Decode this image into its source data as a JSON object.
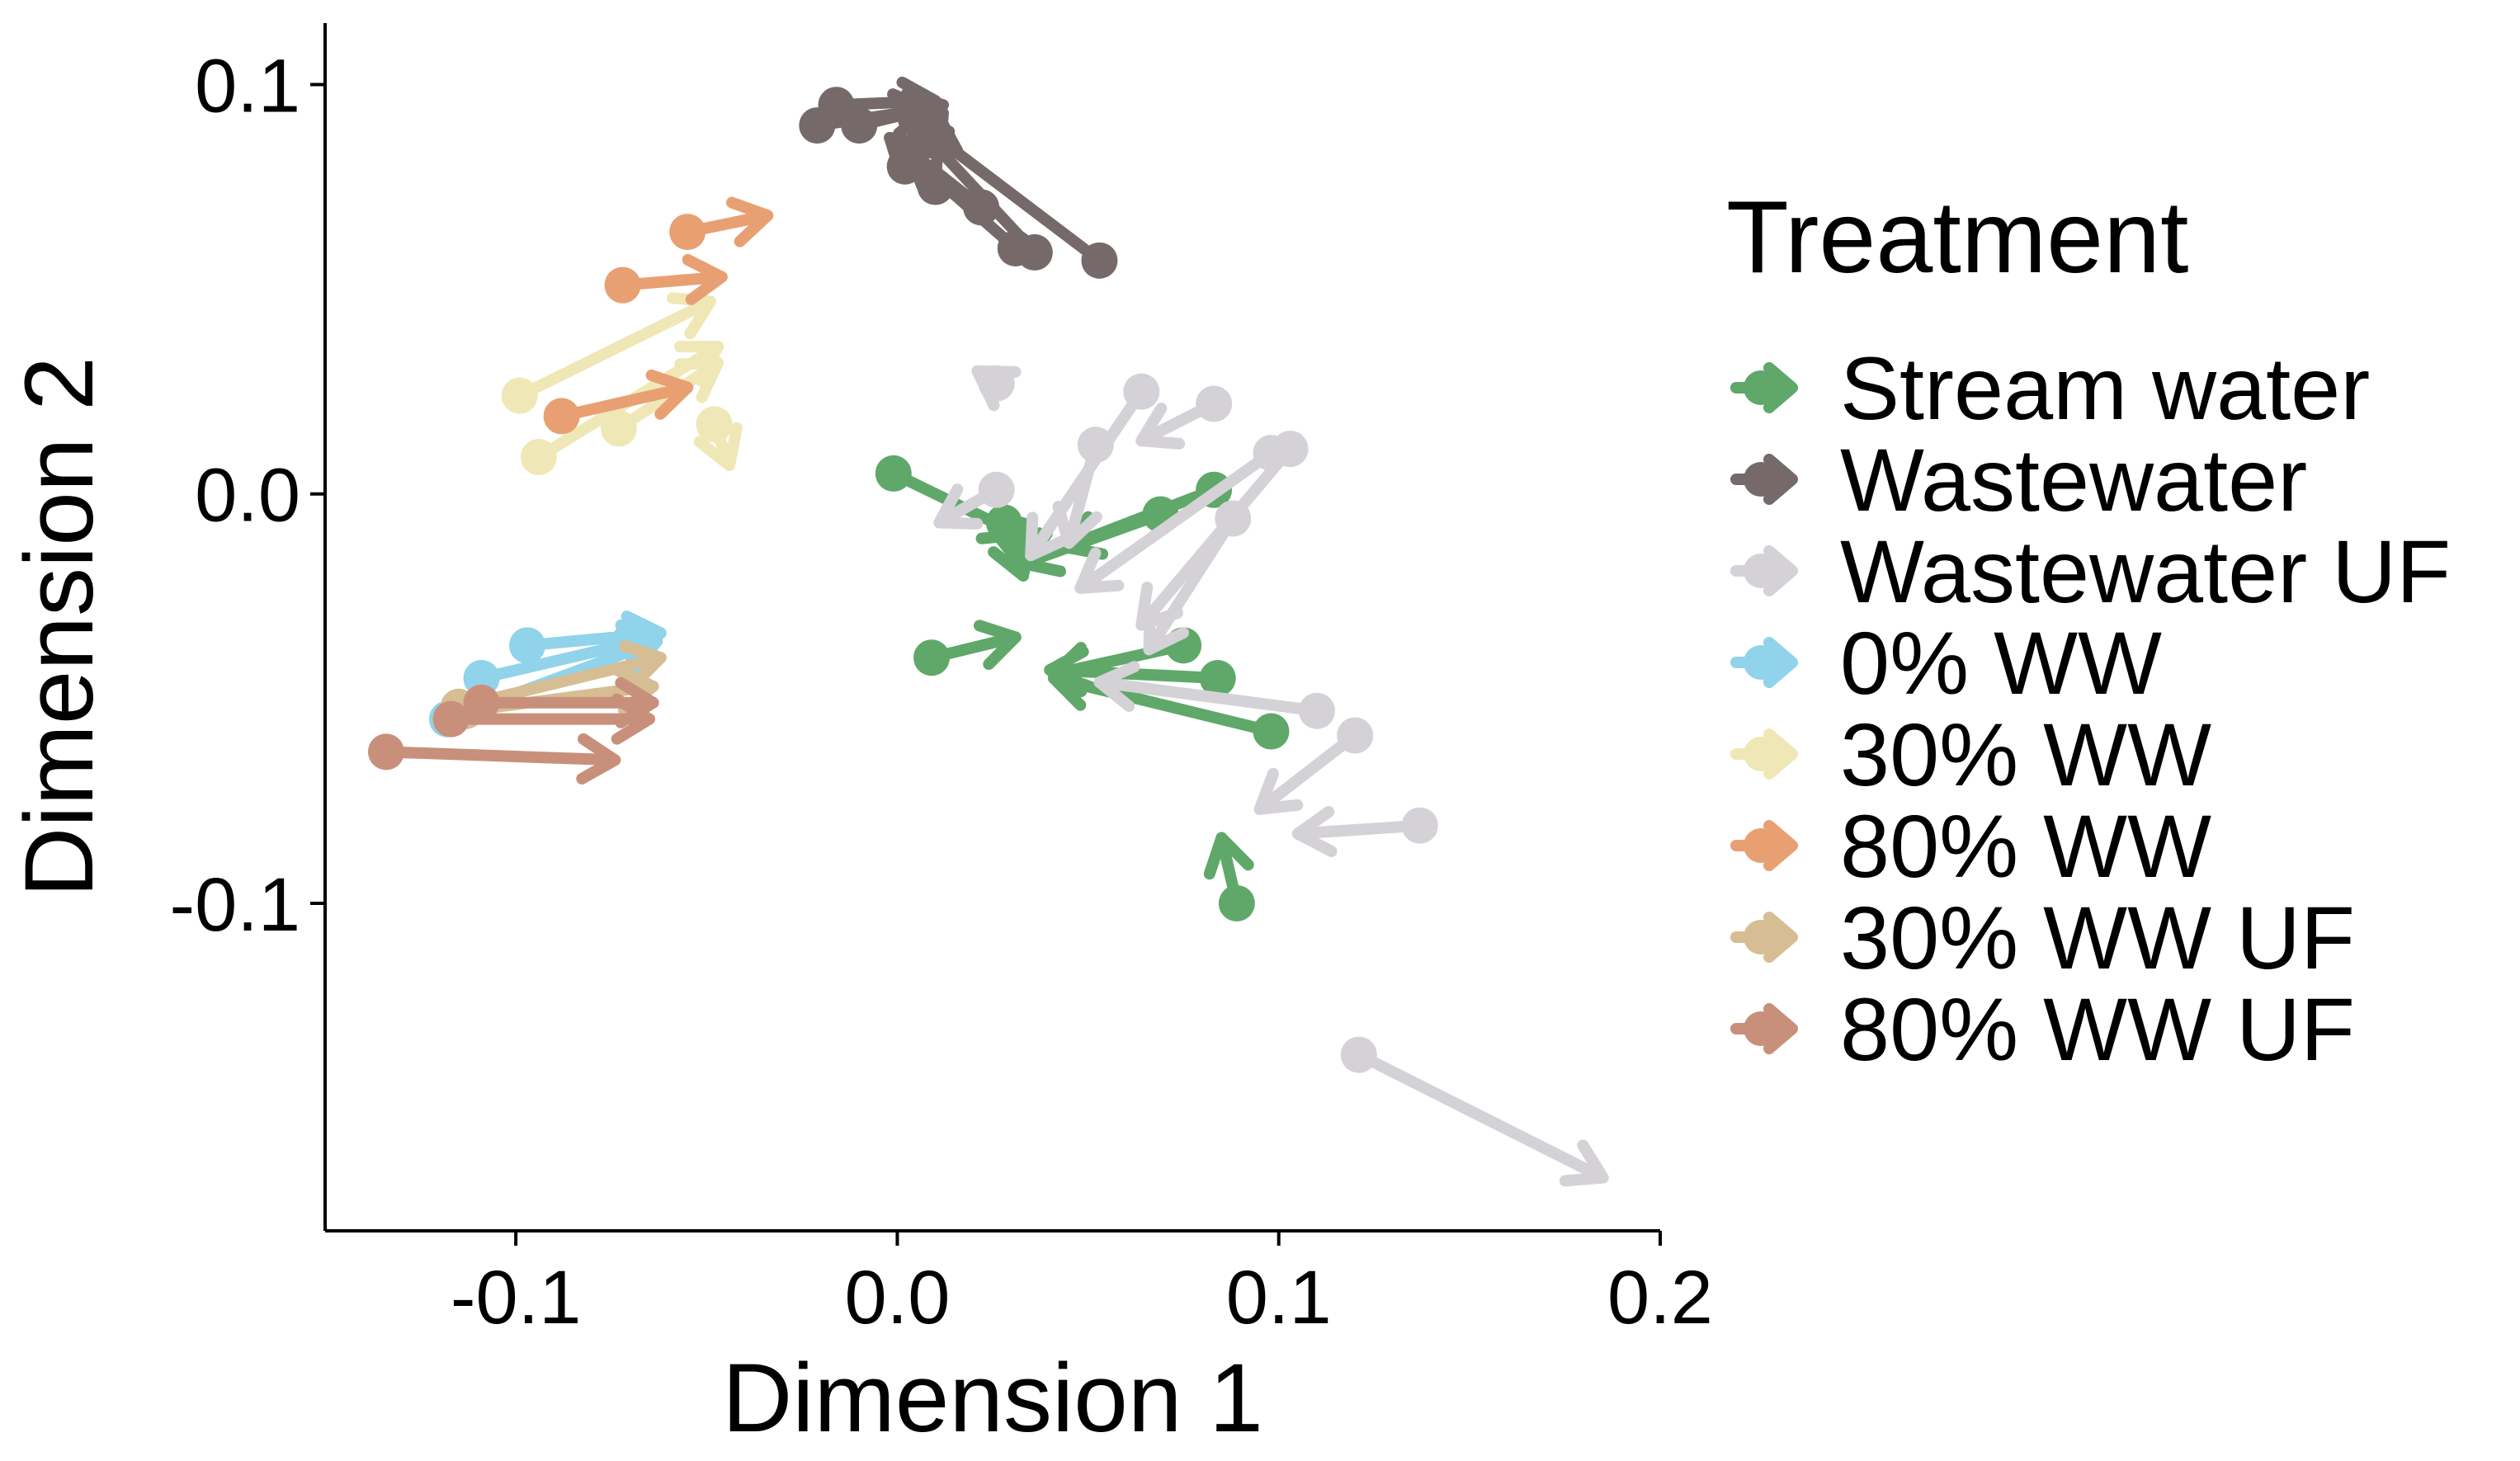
{
  "chart_data": {
    "type": "scatter",
    "subtype": "arrow-displacement",
    "title": "",
    "xlabel": "Dimension 1",
    "ylabel": "Dimension 2",
    "xlim": [
      -0.15,
      0.2
    ],
    "ylim": [
      -0.18,
      0.115
    ],
    "x_ticks": [
      -0.1,
      0.0,
      0.1,
      0.2
    ],
    "x_tick_labels": [
      "-0.1",
      "0.0",
      "0.1",
      "0.2"
    ],
    "y_ticks": [
      -0.1,
      0.0,
      0.1
    ],
    "y_tick_labels": [
      "-0.1",
      "0.0",
      "0.1"
    ],
    "grid": false,
    "legend": {
      "title": "Treatment",
      "position": "right"
    },
    "series": [
      {
        "name": "Stream water",
        "color": "#5fa86a",
        "arrows": [
          {
            "x0": -0.001,
            "y0": 0.005,
            "x1": 0.032,
            "y1": -0.01
          },
          {
            "x0": 0.028,
            "y0": -0.007,
            "x1": 0.033,
            "y1": -0.02
          },
          {
            "x0": 0.032,
            "y0": -0.01,
            "x1": 0.033,
            "y1": -0.018
          },
          {
            "x0": 0.069,
            "y0": -0.005,
            "x1": 0.033,
            "y1": -0.017
          },
          {
            "x0": 0.083,
            "y0": 0.001,
            "x1": 0.044,
            "y1": -0.013
          },
          {
            "x0": 0.009,
            "y0": -0.04,
            "x1": 0.031,
            "y1": -0.035
          },
          {
            "x0": 0.075,
            "y0": -0.037,
            "x1": 0.041,
            "y1": -0.044
          },
          {
            "x0": 0.084,
            "y0": -0.045,
            "x1": 0.04,
            "y1": -0.043
          },
          {
            "x0": 0.098,
            "y0": -0.058,
            "x1": 0.041,
            "y1": -0.045
          },
          {
            "x0": 0.089,
            "y0": -0.1,
            "x1": 0.085,
            "y1": -0.084
          }
        ]
      },
      {
        "name": "Wastewater",
        "color": "#76696a",
        "arrows": [
          {
            "x0": -0.021,
            "y0": 0.09,
            "x1": 0.008,
            "y1": 0.094
          },
          {
            "x0": -0.016,
            "y0": 0.095,
            "x1": 0.01,
            "y1": 0.096
          },
          {
            "x0": -0.01,
            "y0": 0.09,
            "x1": 0.012,
            "y1": 0.095
          },
          {
            "x0": 0.002,
            "y0": 0.08,
            "x1": 0.012,
            "y1": 0.093
          },
          {
            "x0": 0.01,
            "y0": 0.075,
            "x1": 0.011,
            "y1": 0.092
          },
          {
            "x0": 0.022,
            "y0": 0.07,
            "x1": 0.003,
            "y1": 0.084
          },
          {
            "x0": 0.031,
            "y0": 0.06,
            "x1": -0.002,
            "y1": 0.087
          },
          {
            "x0": 0.036,
            "y0": 0.059,
            "x1": 0.004,
            "y1": 0.091
          },
          {
            "x0": 0.053,
            "y0": 0.057,
            "x1": 0.002,
            "y1": 0.093
          }
        ]
      },
      {
        "name": "Wastewater UF",
        "color": "#d4d2d6",
        "arrows": [
          {
            "x0": 0.026,
            "y0": 0.027,
            "x1": 0.021,
            "y1": 0.03
          },
          {
            "x0": 0.026,
            "y0": 0.001,
            "x1": 0.011,
            "y1": -0.007
          },
          {
            "x0": 0.064,
            "y0": 0.025,
            "x1": 0.035,
            "y1": -0.015
          },
          {
            "x0": 0.083,
            "y0": 0.022,
            "x1": 0.064,
            "y1": 0.013
          },
          {
            "x0": 0.052,
            "y0": 0.012,
            "x1": 0.045,
            "y1": -0.012
          },
          {
            "x0": 0.098,
            "y0": 0.01,
            "x1": 0.048,
            "y1": -0.023
          },
          {
            "x0": 0.103,
            "y0": 0.011,
            "x1": 0.064,
            "y1": -0.032
          },
          {
            "x0": 0.088,
            "y0": -0.006,
            "x1": 0.066,
            "y1": -0.038
          },
          {
            "x0": 0.11,
            "y0": -0.053,
            "x1": 0.053,
            "y1": -0.046
          },
          {
            "x0": 0.12,
            "y0": -0.059,
            "x1": 0.095,
            "y1": -0.077
          },
          {
            "x0": 0.137,
            "y0": -0.081,
            "x1": 0.105,
            "y1": -0.083
          },
          {
            "x0": 0.121,
            "y0": -0.137,
            "x1": 0.185,
            "y1": -0.167
          }
        ]
      },
      {
        "name": "0% WW",
        "color": "#90d3ea",
        "arrows": [
          {
            "x0": -0.097,
            "y0": -0.037,
            "x1": -0.062,
            "y1": -0.034
          },
          {
            "x0": -0.109,
            "y0": -0.045,
            "x1": -0.063,
            "y1": -0.035
          },
          {
            "x0": -0.118,
            "y0": -0.055,
            "x1": -0.063,
            "y1": -0.036
          }
        ]
      },
      {
        "name": "30% WW",
        "color": "#efe8b6",
        "arrows": [
          {
            "x0": -0.099,
            "y0": 0.024,
            "x1": -0.049,
            "y1": 0.047
          },
          {
            "x0": -0.094,
            "y0": 0.009,
            "x1": -0.047,
            "y1": 0.036
          },
          {
            "x0": -0.073,
            "y0": 0.016,
            "x1": -0.047,
            "y1": 0.032
          },
          {
            "x0": -0.048,
            "y0": 0.017,
            "x1": -0.044,
            "y1": 0.007
          }
        ]
      },
      {
        "name": "80% WW",
        "color": "#e8a073",
        "arrows": [
          {
            "x0": -0.055,
            "y0": 0.064,
            "x1": -0.034,
            "y1": 0.068
          },
          {
            "x0": -0.072,
            "y0": 0.051,
            "x1": -0.046,
            "y1": 0.053
          },
          {
            "x0": -0.088,
            "y0": 0.019,
            "x1": -0.055,
            "y1": 0.026
          }
        ]
      },
      {
        "name": "30% WW UF",
        "color": "#d6bd94",
        "arrows": [
          {
            "x0": -0.115,
            "y0": -0.052,
            "x1": -0.062,
            "y1": -0.04
          },
          {
            "x0": -0.113,
            "y0": -0.053,
            "x1": -0.064,
            "y1": -0.047
          }
        ]
      },
      {
        "name": "80% WW UF",
        "color": "#c8907a",
        "arrows": [
          {
            "x0": -0.134,
            "y0": -0.063,
            "x1": -0.074,
            "y1": -0.065
          },
          {
            "x0": -0.117,
            "y0": -0.055,
            "x1": -0.065,
            "y1": -0.055
          },
          {
            "x0": -0.109,
            "y0": -0.051,
            "x1": -0.064,
            "y1": -0.051
          }
        ]
      }
    ]
  }
}
